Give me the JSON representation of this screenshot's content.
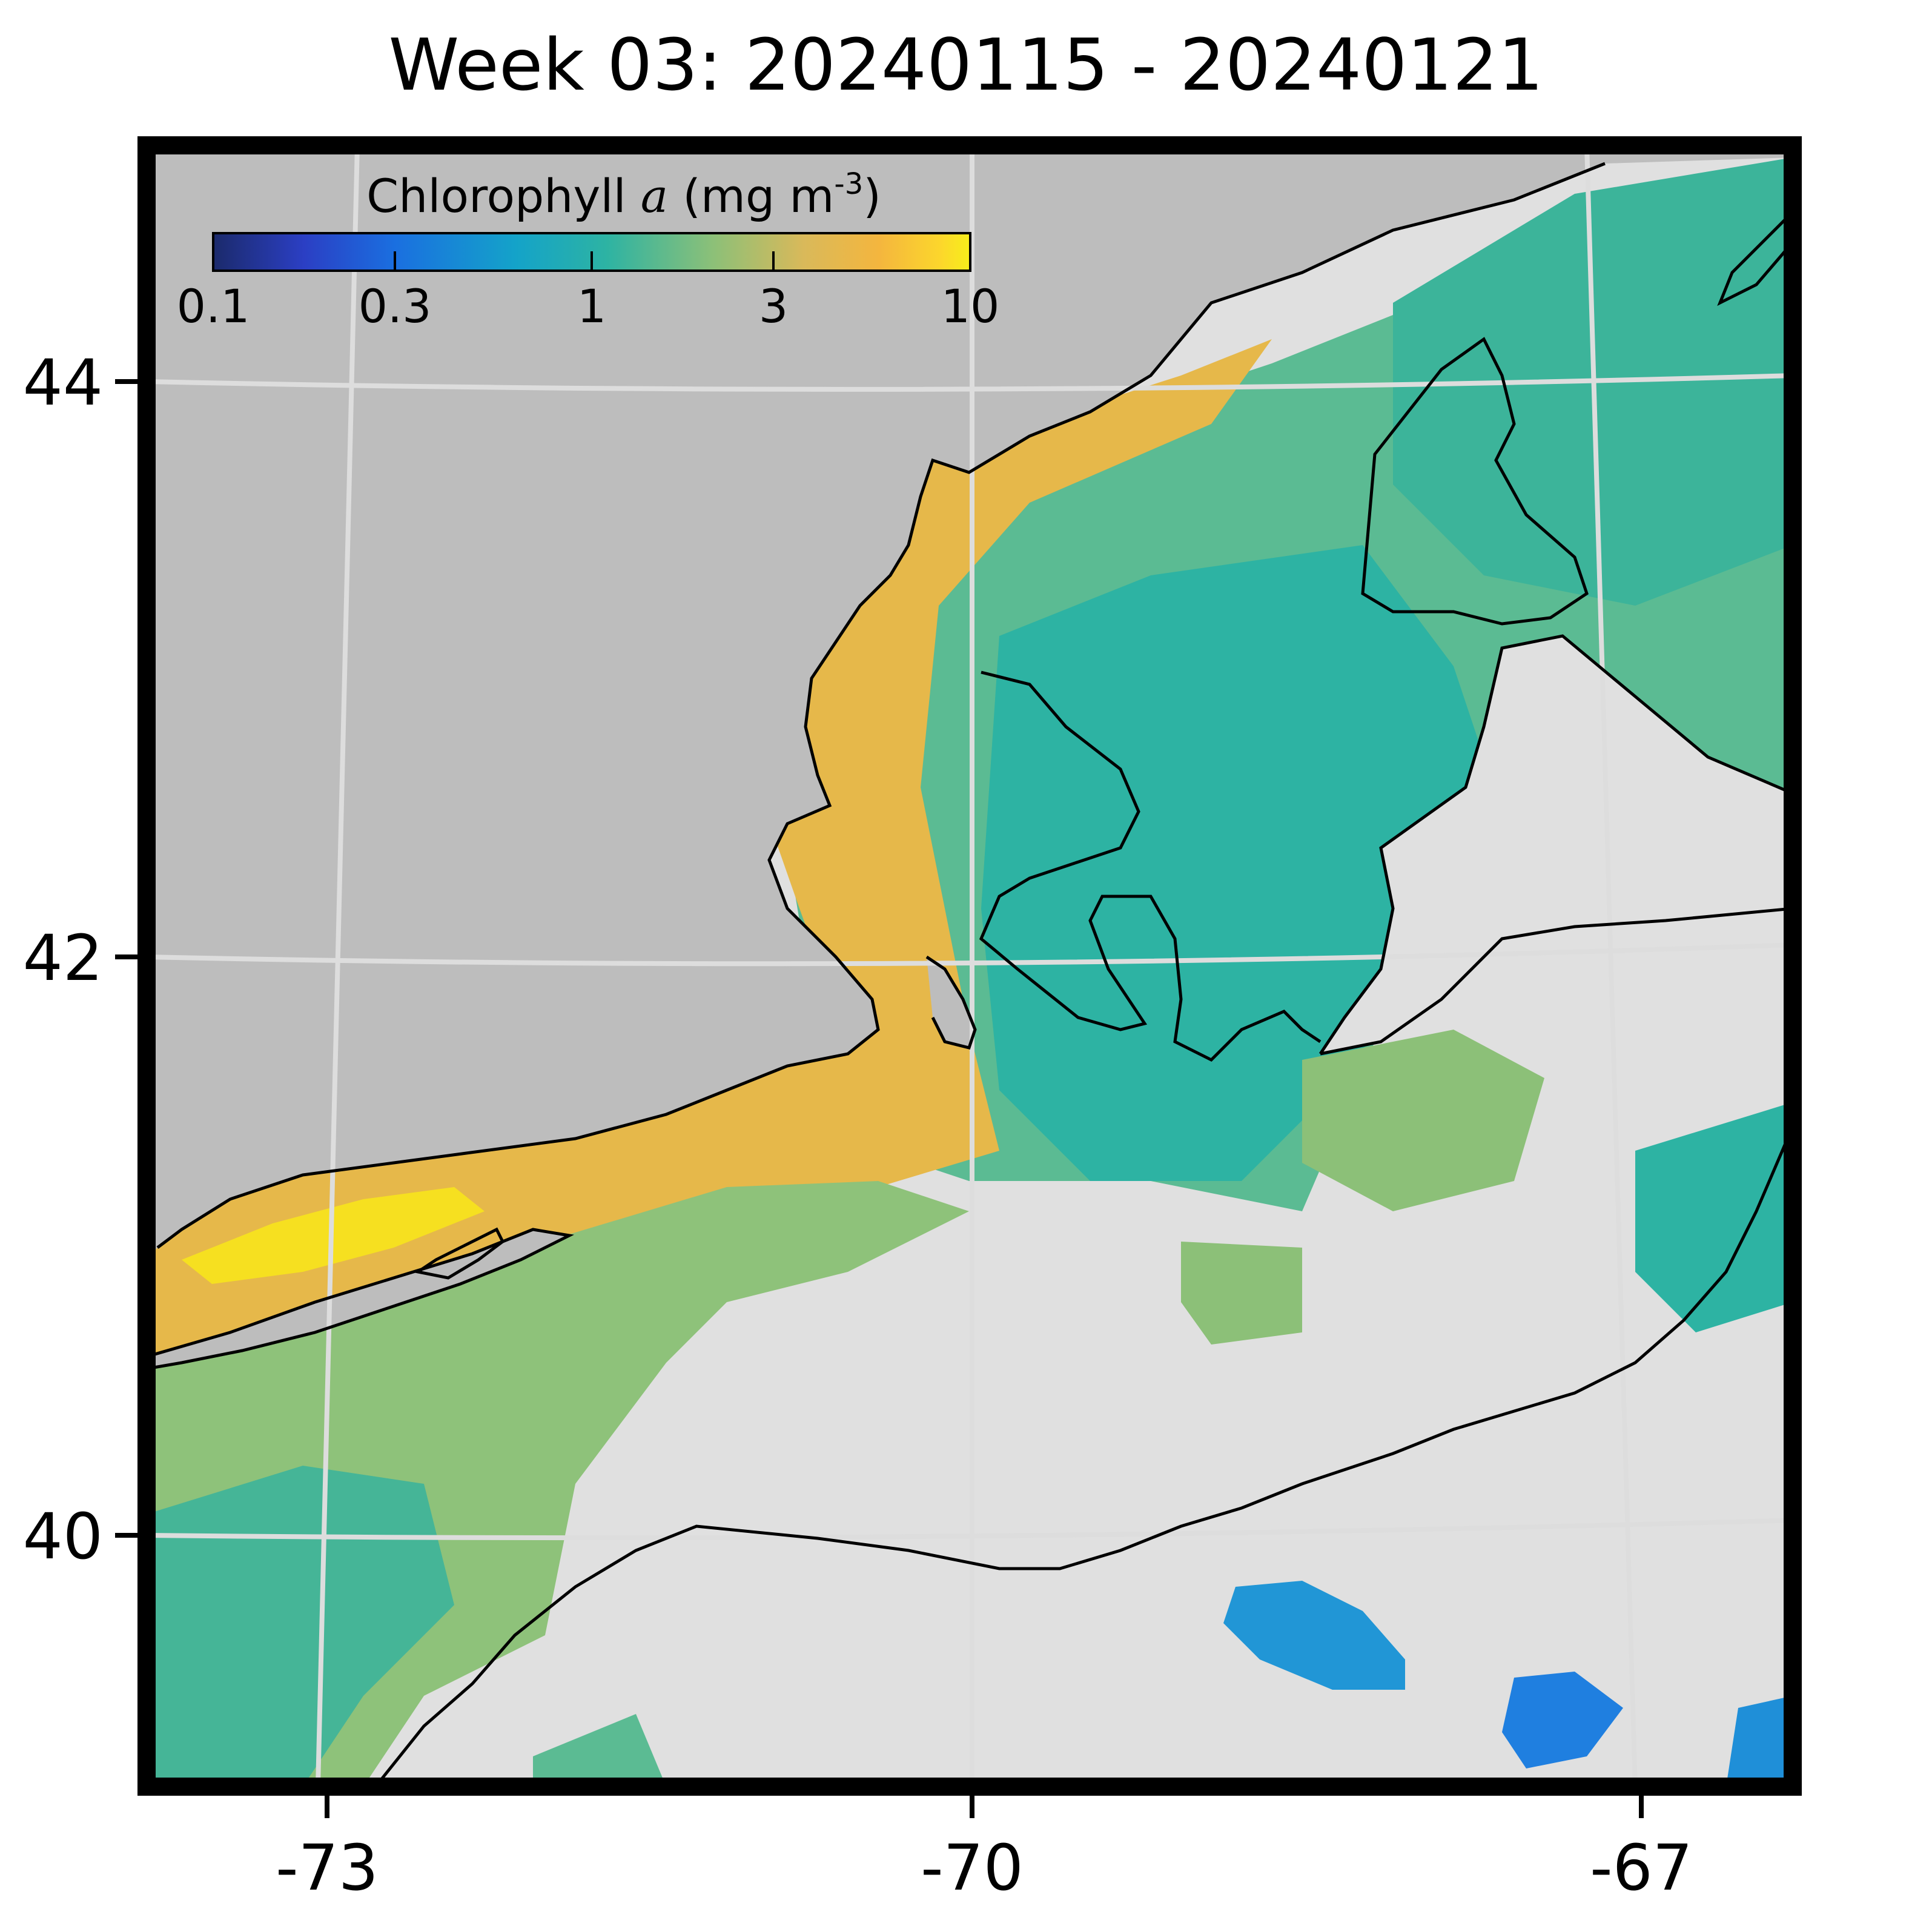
{
  "title": "Week 03: 20240115 - 20240121",
  "colorbar": {
    "label_prefix": "Chlorophyll ",
    "label_var": "a",
    "label_unit": " (mg m",
    "label_exp": "-3",
    "label_close": ")",
    "scale": "log",
    "ticks": [
      {
        "value": 0.1,
        "label": "0.1"
      },
      {
        "value": 0.3,
        "label": "0.3"
      },
      {
        "value": 1,
        "label": "1"
      },
      {
        "value": 3,
        "label": "3"
      },
      {
        "value": 10,
        "label": "10"
      }
    ],
    "range": [
      0.1,
      10
    ],
    "colors": [
      "#1b2a6b",
      "#2b3fc4",
      "#1a6fe0",
      "#14a3c9",
      "#2db3a3",
      "#8cc078",
      "#d9b95a",
      "#f4b63e",
      "#fcd62c",
      "#f7ef1a"
    ]
  },
  "map": {
    "lon_range": [
      -73.9,
      -66.5
    ],
    "lat_range": [
      39.1,
      44.6
    ],
    "x_ticks": [
      {
        "value": -73,
        "label": "-73"
      },
      {
        "value": -70,
        "label": "-70"
      },
      {
        "value": -67,
        "label": "-67"
      }
    ],
    "y_ticks": [
      {
        "value": 44,
        "label": "44"
      },
      {
        "value": 42,
        "label": "42"
      },
      {
        "value": 40,
        "label": "40"
      }
    ],
    "land_color": "#bdbdbd",
    "no_data_color": "#e0e0e0",
    "grid_color": "#dddddd"
  }
}
